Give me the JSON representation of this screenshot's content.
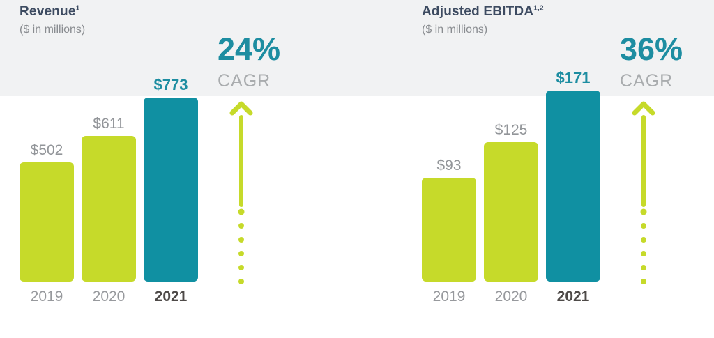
{
  "page": {
    "background": "#ffffff",
    "header_band_color": "#f1f2f3"
  },
  "colors": {
    "lime": "#c6da2a",
    "teal": "#1090a2",
    "teal_text": "#1d8da1",
    "title": "#3d4b61",
    "subtitle_gray": "#898c90",
    "value_gray": "#929599",
    "cagr_gray": "#a9acae",
    "year_gray": "#97999d",
    "year_dark": "#4e4a48",
    "band": "#f1f2f3"
  },
  "chart_data": [
    {
      "type": "bar",
      "title": "Revenue",
      "title_superscript": "1",
      "subtitle": "($ in millions)",
      "categories": [
        "2019",
        "2020",
        "2021"
      ],
      "values": [
        502,
        611,
        773
      ],
      "value_labels": [
        "$502",
        "$611",
        "$773"
      ],
      "highlight_index": 2,
      "cagr_value": "24%",
      "cagr_label": "CAGR",
      "arrow_icon": "dotted-tail-up-arrow",
      "xlabel": "",
      "ylabel": "",
      "ylim": [
        0,
        773
      ],
      "grid": false,
      "axes_shown": false,
      "legend": false
    },
    {
      "type": "bar",
      "title": "Adjusted EBITDA",
      "title_superscript": "1,2",
      "subtitle": "($ in millions)",
      "categories": [
        "2019",
        "2020",
        "2021"
      ],
      "values": [
        93,
        125,
        171
      ],
      "value_labels": [
        "$93",
        "$125",
        "$171"
      ],
      "highlight_index": 2,
      "cagr_value": "36%",
      "cagr_label": "CAGR",
      "arrow_icon": "dotted-tail-up-arrow",
      "xlabel": "",
      "ylabel": "",
      "ylim": [
        0,
        171
      ],
      "grid": false,
      "axes_shown": false,
      "legend": false
    }
  ]
}
